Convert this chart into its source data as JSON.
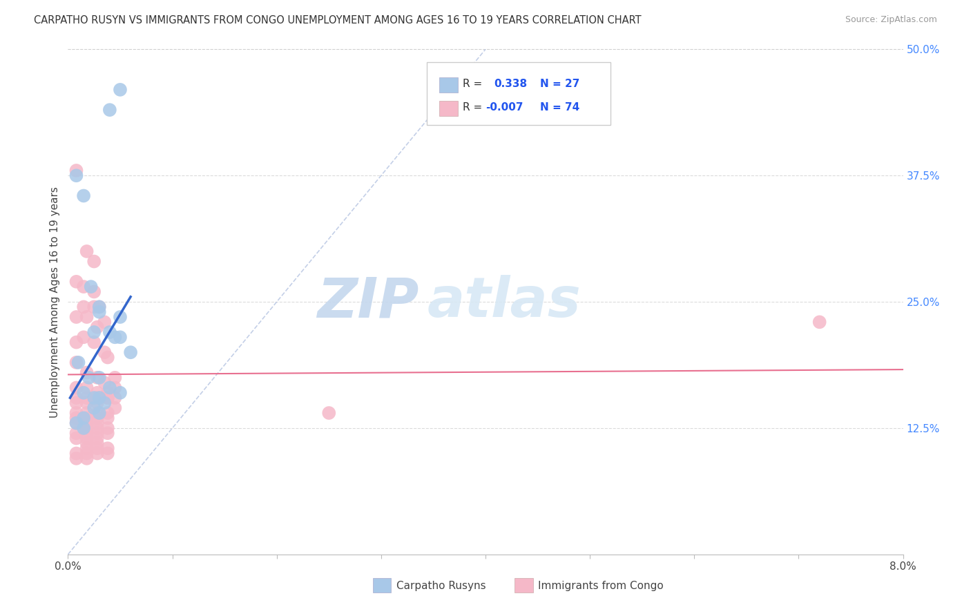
{
  "title": "CARPATHO RUSYN VS IMMIGRANTS FROM CONGO UNEMPLOYMENT AMONG AGES 16 TO 19 YEARS CORRELATION CHART",
  "source": "Source: ZipAtlas.com",
  "ylabel": "Unemployment Among Ages 16 to 19 years",
  "xlim": [
    0.0,
    0.08
  ],
  "ylim": [
    0.0,
    0.5
  ],
  "xticks": [
    0.0,
    0.01,
    0.02,
    0.03,
    0.04,
    0.05,
    0.06,
    0.07,
    0.08
  ],
  "xtick_labels": [
    "0.0%",
    "",
    "",
    "",
    "",
    "",
    "",
    "",
    "8.0%"
  ],
  "yticks_right": [
    0.125,
    0.25,
    0.375,
    0.5
  ],
  "ytick_labels_right": [
    "12.5%",
    "25.0%",
    "37.5%",
    "50.0%"
  ],
  "bg_color": "#ffffff",
  "grid_color": "#cccccc",
  "blue_color": "#a8c8e8",
  "pink_color": "#f5b8c8",
  "blue_line_color": "#3366cc",
  "pink_line_color": "#e87090",
  "label1": "Carpatho Rusyns",
  "label2": "Immigrants from Congo",
  "blue_points": [
    [
      0.0008,
      0.375
    ],
    [
      0.0015,
      0.355
    ],
    [
      0.0025,
      0.22
    ],
    [
      0.004,
      0.44
    ],
    [
      0.005,
      0.46
    ],
    [
      0.0022,
      0.265
    ],
    [
      0.003,
      0.245
    ],
    [
      0.003,
      0.24
    ],
    [
      0.004,
      0.22
    ],
    [
      0.005,
      0.235
    ],
    [
      0.0045,
      0.215
    ],
    [
      0.005,
      0.215
    ],
    [
      0.006,
      0.2
    ],
    [
      0.002,
      0.175
    ],
    [
      0.003,
      0.175
    ],
    [
      0.004,
      0.165
    ],
    [
      0.005,
      0.16
    ],
    [
      0.0015,
      0.16
    ],
    [
      0.0025,
      0.155
    ],
    [
      0.003,
      0.155
    ],
    [
      0.0035,
      0.15
    ],
    [
      0.0025,
      0.145
    ],
    [
      0.003,
      0.14
    ],
    [
      0.0015,
      0.135
    ],
    [
      0.0008,
      0.13
    ],
    [
      0.0015,
      0.125
    ],
    [
      0.001,
      0.19
    ]
  ],
  "pink_points": [
    [
      0.0008,
      0.38
    ],
    [
      0.0018,
      0.3
    ],
    [
      0.0025,
      0.29
    ],
    [
      0.0008,
      0.27
    ],
    [
      0.0015,
      0.265
    ],
    [
      0.0025,
      0.26
    ],
    [
      0.0015,
      0.245
    ],
    [
      0.0025,
      0.245
    ],
    [
      0.003,
      0.245
    ],
    [
      0.0008,
      0.235
    ],
    [
      0.0018,
      0.235
    ],
    [
      0.0028,
      0.225
    ],
    [
      0.0035,
      0.23
    ],
    [
      0.0015,
      0.215
    ],
    [
      0.0008,
      0.21
    ],
    [
      0.0025,
      0.21
    ],
    [
      0.0035,
      0.2
    ],
    [
      0.0038,
      0.195
    ],
    [
      0.0008,
      0.19
    ],
    [
      0.0018,
      0.18
    ],
    [
      0.0028,
      0.175
    ],
    [
      0.0035,
      0.17
    ],
    [
      0.0045,
      0.175
    ],
    [
      0.0008,
      0.165
    ],
    [
      0.0018,
      0.165
    ],
    [
      0.0028,
      0.16
    ],
    [
      0.0038,
      0.16
    ],
    [
      0.0045,
      0.165
    ],
    [
      0.0008,
      0.155
    ],
    [
      0.0018,
      0.155
    ],
    [
      0.0028,
      0.155
    ],
    [
      0.003,
      0.155
    ],
    [
      0.0038,
      0.155
    ],
    [
      0.0045,
      0.155
    ],
    [
      0.0008,
      0.15
    ],
    [
      0.0018,
      0.15
    ],
    [
      0.0028,
      0.15
    ],
    [
      0.0038,
      0.155
    ],
    [
      0.0045,
      0.145
    ],
    [
      0.0008,
      0.14
    ],
    [
      0.0018,
      0.14
    ],
    [
      0.0028,
      0.14
    ],
    [
      0.0038,
      0.14
    ],
    [
      0.0008,
      0.135
    ],
    [
      0.0018,
      0.135
    ],
    [
      0.0028,
      0.135
    ],
    [
      0.0038,
      0.135
    ],
    [
      0.0008,
      0.13
    ],
    [
      0.0018,
      0.13
    ],
    [
      0.0028,
      0.13
    ],
    [
      0.0018,
      0.125
    ],
    [
      0.0028,
      0.125
    ],
    [
      0.0038,
      0.125
    ],
    [
      0.0008,
      0.12
    ],
    [
      0.0018,
      0.12
    ],
    [
      0.0028,
      0.12
    ],
    [
      0.0038,
      0.12
    ],
    [
      0.0008,
      0.115
    ],
    [
      0.0018,
      0.115
    ],
    [
      0.0028,
      0.115
    ],
    [
      0.0018,
      0.11
    ],
    [
      0.0028,
      0.11
    ],
    [
      0.0018,
      0.105
    ],
    [
      0.0028,
      0.105
    ],
    [
      0.0038,
      0.105
    ],
    [
      0.0008,
      0.1
    ],
    [
      0.0018,
      0.1
    ],
    [
      0.0028,
      0.1
    ],
    [
      0.0038,
      0.1
    ],
    [
      0.0008,
      0.095
    ],
    [
      0.0018,
      0.095
    ],
    [
      0.025,
      0.14
    ],
    [
      0.072,
      0.23
    ]
  ],
  "diag_line_x": [
    0.0,
    0.04
  ],
  "diag_line_y": [
    0.0,
    0.5
  ],
  "blue_trend_x": [
    0.0002,
    0.006
  ],
  "blue_trend_y": [
    0.155,
    0.255
  ],
  "pink_trend_x": [
    0.0,
    0.08
  ],
  "pink_trend_y": [
    0.178,
    0.183
  ]
}
